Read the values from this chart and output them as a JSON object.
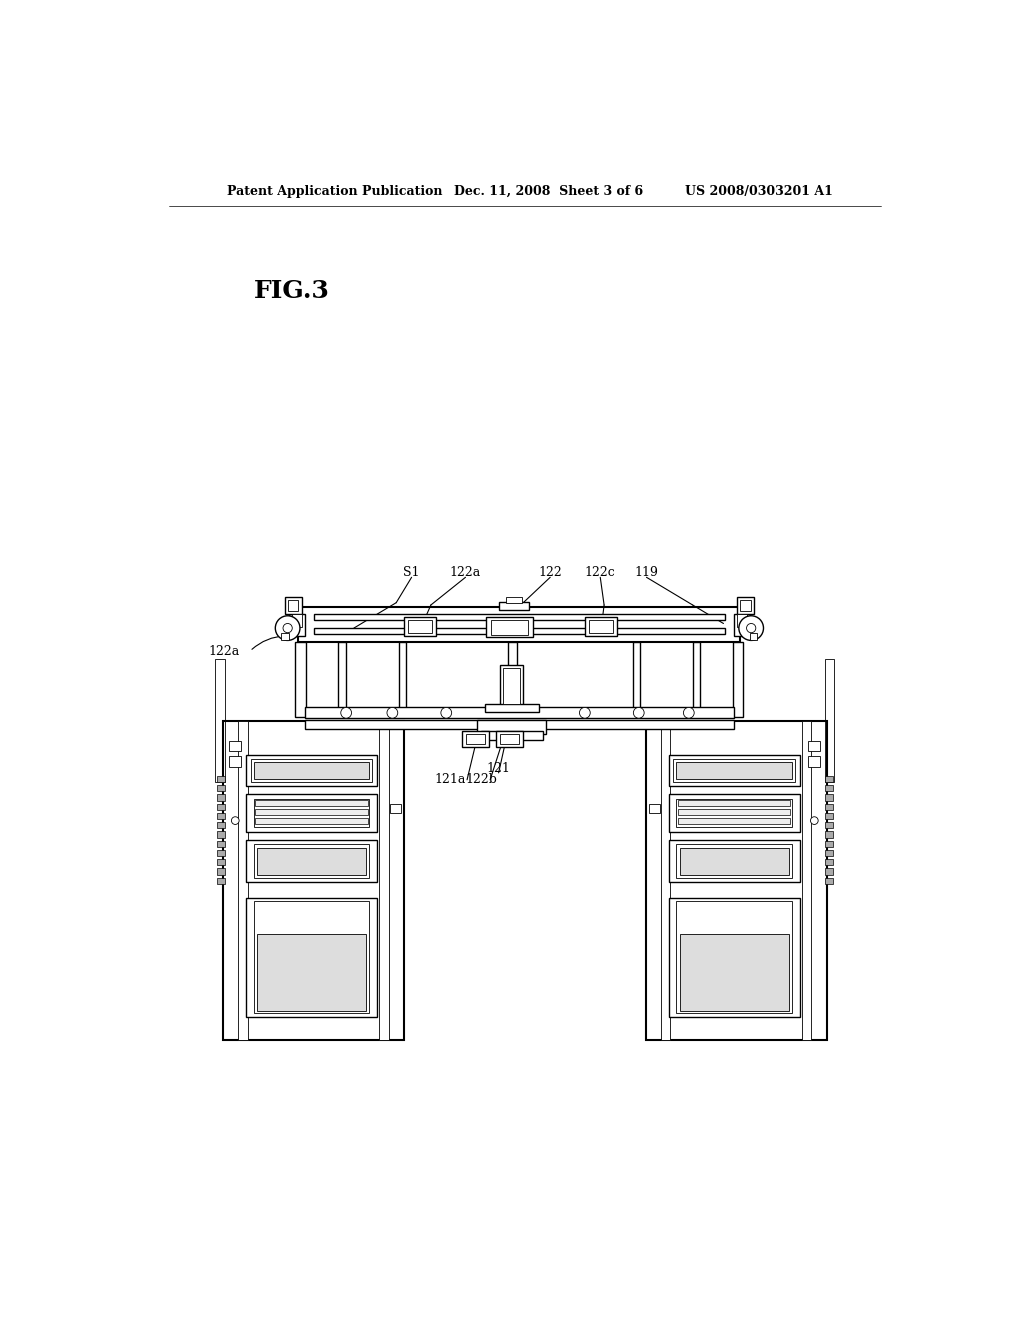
{
  "bg_color": "#ffffff",
  "header_left": "Patent Application Publication",
  "header_mid": "Dec. 11, 2008  Sheet 3 of 6",
  "header_right": "US 2008/0303201 A1",
  "fig_label": "FIG.3",
  "lw": 1.0,
  "lw_thin": 0.6,
  "lw_thick": 1.5,
  "lw_ann": 0.8,
  "fontsize_header": 9.0,
  "fontsize_fig": 18,
  "fontsize_label": 9.0
}
